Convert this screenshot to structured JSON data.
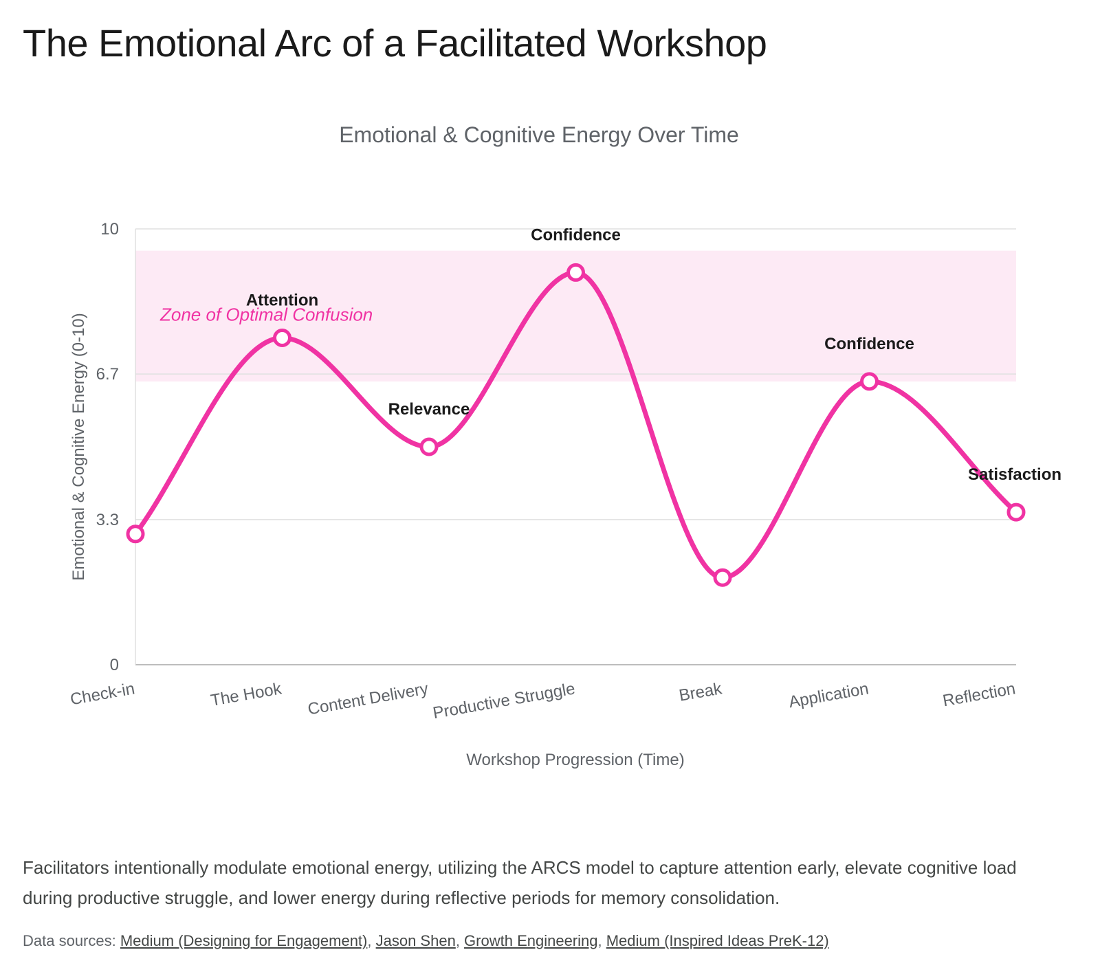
{
  "page": {
    "title": "The Emotional Arc of a Facilitated Workshop",
    "caption": "Facilitators intentionally modulate emotional energy, utilizing the ARCS model to capture attention early, elevate cognitive load during productive struggle, and lower energy during reflective periods for memory consolidation.",
    "sources_label": "Data sources:",
    "sources": [
      {
        "label": "Medium (Designing for Engagement)"
      },
      {
        "label": "Jason Shen"
      },
      {
        "label": "Growth Engineering"
      },
      {
        "label": "Medium (Inspired Ideas PreK-12)"
      }
    ]
  },
  "chart_data": {
    "type": "line",
    "title": "Emotional & Cognitive Energy Over Time",
    "xlabel": "Workshop Progression (Time)",
    "ylabel": "Emotional & Cognitive Energy (0-10)",
    "ylim": [
      0,
      10
    ],
    "yticks": [
      "0",
      "3.3",
      "6.7",
      "10"
    ],
    "ytick_values": [
      0,
      3.33,
      6.67,
      10
    ],
    "grid": true,
    "categories": [
      "Check-in",
      "The Hook",
      "Content Delivery",
      "Productive Struggle",
      "Break",
      "Application",
      "Reflection"
    ],
    "series": [
      {
        "values": [
          3.0,
          7.5,
          5.0,
          9.0,
          2.0,
          6.5,
          3.5
        ],
        "color": "#f033a3"
      }
    ],
    "annotations": [
      {
        "index": 1,
        "text": "Attention"
      },
      {
        "index": 2,
        "text": "Relevance"
      },
      {
        "index": 3,
        "text": "Confidence"
      },
      {
        "index": 5,
        "text": "Confidence"
      },
      {
        "index": 6,
        "text": "Satisfaction"
      }
    ],
    "band": {
      "from": 6.5,
      "to": 9.5,
      "label": "Zone of Optimal Confusion",
      "color": "#fdeaf5",
      "label_color": "#f033a3"
    }
  }
}
